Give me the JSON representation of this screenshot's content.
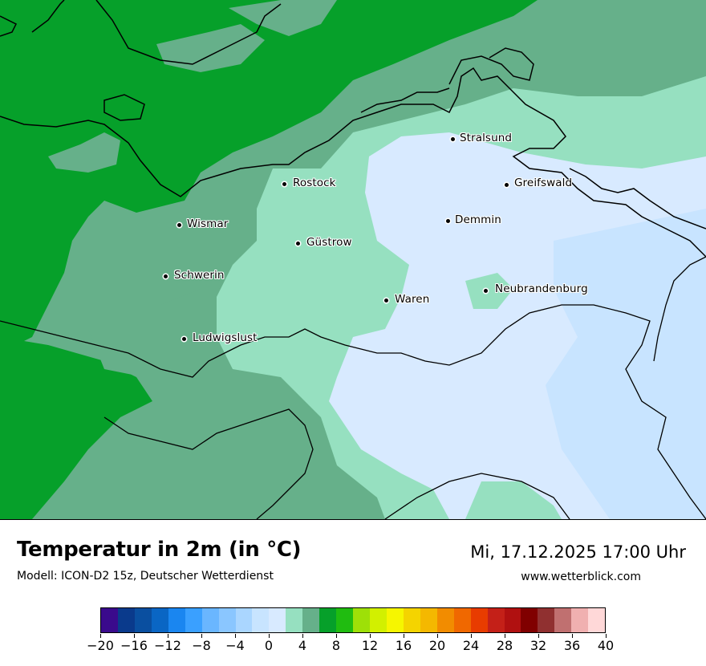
{
  "title": "Temperatur in 2m (in °C)",
  "subtitle": "Modell: ICON-D2 15z, Deutscher Wetterdienst",
  "datetime": "Mi, 17.12.2025 17:00 Uhr",
  "website": "www.wetterblick.com",
  "cities": [
    {
      "name": "Stralsund"
    },
    {
      "name": "Rostock"
    },
    {
      "name": "Greifswald"
    },
    {
      "name": "Demmin"
    },
    {
      "name": "Wismar"
    },
    {
      "name": "Güstrow"
    },
    {
      "name": "Schwerin"
    },
    {
      "name": "Neubrandenburg"
    },
    {
      "name": "Waren"
    },
    {
      "name": "Ludwigslust"
    }
  ],
  "colorbar": {
    "colors": [
      "#3a0a8c",
      "#0a3a8c",
      "#0a4fa0",
      "#0a66c4",
      "#1a86f0",
      "#3aa0ff",
      "#6ab6ff",
      "#8ac6ff",
      "#aad6ff",
      "#c8e4ff",
      "#d8eaff",
      "#96e0c0",
      "#66b08a",
      "#06a02a",
      "#20bc10",
      "#9ee008",
      "#d2f000",
      "#f6f600",
      "#f4d400",
      "#f4b800",
      "#f28c00",
      "#f06800",
      "#e83c00",
      "#c42018",
      "#b01010",
      "#800000",
      "#903030",
      "#c07070",
      "#f0b0b0",
      "#ffd8d8"
    ],
    "tick_labels": [
      "−20",
      "−16",
      "−12",
      "−8",
      "−4",
      "0",
      "4",
      "8",
      "12",
      "16",
      "20",
      "24",
      "28",
      "32",
      "36",
      "40"
    ]
  },
  "colors": {
    "sea_green": "#06a02a",
    "green_mid": "#66b08a",
    "green_light": "#96e0c0",
    "blue_pale": "#d8eaff",
    "blue_light": "#c8e4ff"
  }
}
